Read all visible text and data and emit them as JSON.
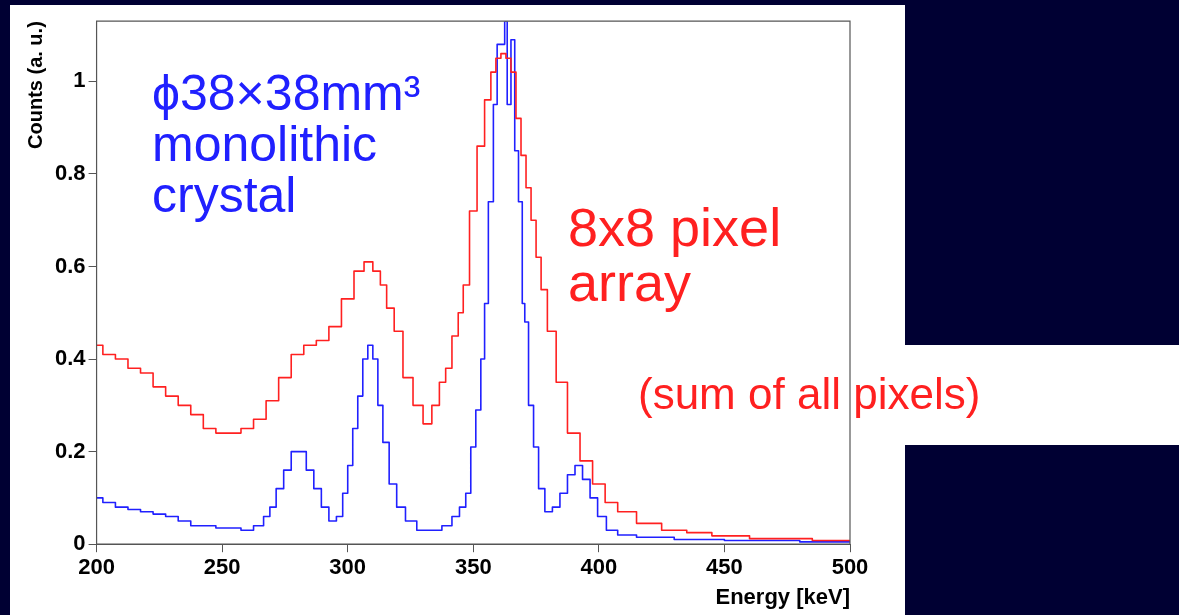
{
  "chart_data": {
    "type": "step",
    "xlabel": "Energy [keV]",
    "ylabel": "Counts (a. u.)",
    "xlim": [
      200,
      500
    ],
    "xticks": [
      200,
      250,
      300,
      350,
      400,
      450,
      500
    ],
    "ylim": [
      0,
      1.13
    ],
    "yticks": [
      0,
      0.2,
      0.4,
      0.6,
      0.8,
      1
    ],
    "grid": false,
    "legend": false,
    "marker": "none",
    "line_style": "solid",
    "annotations": [
      "(sum of all pixels)"
    ],
    "series": [
      {
        "name": "8x8 pixel array",
        "color": "#ff2020",
        "x": [
          200,
          205,
          210,
          215,
          220,
          225,
          230,
          235,
          240,
          245,
          250,
          255,
          260,
          265,
          270,
          275,
          280,
          285,
          290,
          295,
          300,
          305,
          308,
          312,
          314,
          317,
          320,
          324,
          328,
          332,
          335,
          338,
          340,
          343,
          345,
          347,
          350,
          353,
          356,
          358,
          360,
          362,
          364,
          366,
          368,
          370,
          372,
          374,
          376,
          378,
          381,
          385,
          390,
          395,
          400,
          405,
          410,
          420,
          430,
          440,
          450,
          470,
          500
        ],
        "values": [
          0.43,
          0.41,
          0.4,
          0.38,
          0.37,
          0.34,
          0.32,
          0.3,
          0.28,
          0.25,
          0.24,
          0.24,
          0.25,
          0.27,
          0.31,
          0.36,
          0.41,
          0.43,
          0.44,
          0.47,
          0.53,
          0.59,
          0.61,
          0.59,
          0.56,
          0.51,
          0.46,
          0.36,
          0.3,
          0.26,
          0.3,
          0.35,
          0.38,
          0.45,
          0.5,
          0.56,
          0.72,
          0.86,
          0.96,
          1.02,
          1.05,
          1.06,
          1.05,
          1.02,
          0.92,
          0.84,
          0.77,
          0.7,
          0.62,
          0.55,
          0.46,
          0.35,
          0.24,
          0.18,
          0.13,
          0.09,
          0.07,
          0.045,
          0.03,
          0.025,
          0.018,
          0.012,
          0.008
        ]
      },
      {
        "name": "ϕ38×38mm³ monolithic crystal",
        "color": "#2020ff",
        "x": [
          200,
          205,
          210,
          215,
          220,
          225,
          230,
          235,
          240,
          245,
          250,
          255,
          260,
          265,
          268,
          270,
          273,
          276,
          279,
          282,
          285,
          288,
          291,
          294,
          297,
          299,
          301,
          303,
          305,
          307,
          309,
          311,
          313,
          315,
          318,
          321,
          325,
          330,
          335,
          340,
          343,
          346,
          348,
          350,
          352,
          354,
          355,
          357,
          359,
          360,
          362,
          363,
          364,
          366,
          367,
          369,
          370,
          371,
          373,
          375,
          377,
          380,
          383,
          386,
          389,
          392,
          395,
          398,
          401,
          405,
          410,
          420,
          440,
          460,
          500
        ],
        "values": [
          0.1,
          0.09,
          0.08,
          0.075,
          0.07,
          0.065,
          0.06,
          0.05,
          0.04,
          0.04,
          0.035,
          0.035,
          0.03,
          0.04,
          0.06,
          0.08,
          0.12,
          0.16,
          0.2,
          0.2,
          0.16,
          0.12,
          0.08,
          0.05,
          0.06,
          0.11,
          0.17,
          0.25,
          0.32,
          0.4,
          0.43,
          0.4,
          0.3,
          0.22,
          0.13,
          0.08,
          0.05,
          0.03,
          0.03,
          0.04,
          0.06,
          0.08,
          0.11,
          0.21,
          0.29,
          0.4,
          0.52,
          0.74,
          0.95,
          1.08,
          1.08,
          1.13,
          0.95,
          1.09,
          0.85,
          0.74,
          0.52,
          0.48,
          0.3,
          0.21,
          0.12,
          0.07,
          0.08,
          0.11,
          0.15,
          0.17,
          0.14,
          0.1,
          0.06,
          0.03,
          0.02,
          0.015,
          0.01,
          0.008,
          0.005
        ]
      }
    ]
  }
}
